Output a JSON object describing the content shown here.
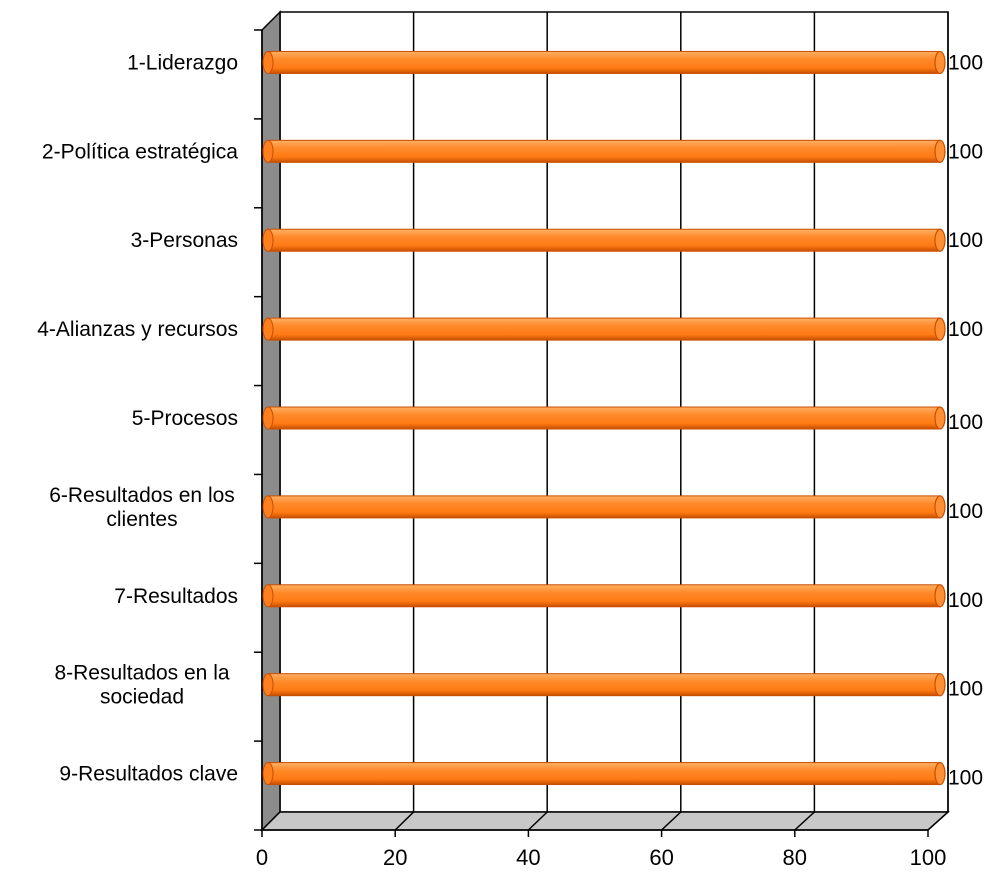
{
  "chart_data": {
    "type": "bar",
    "orientation": "horizontal",
    "style": "3d-cylinder",
    "categories": [
      [
        "1-Liderazgo"
      ],
      [
        "2-Política estratégica"
      ],
      [
        "3-Personas"
      ],
      [
        "4-Alianzas y recursos"
      ],
      [
        "5-Procesos"
      ],
      [
        "6-Resultados en los",
        "clientes"
      ],
      [
        "7-Resultados"
      ],
      [
        "8-Resultados en la",
        "sociedad"
      ],
      [
        "9-Resultados clave"
      ]
    ],
    "values": [
      100,
      100,
      100,
      100,
      100,
      100,
      100,
      100,
      100
    ],
    "data_labels": [
      "100",
      "100",
      "100",
      "100",
      "100",
      "100",
      "100",
      "100",
      "100"
    ],
    "xlim": [
      0,
      100
    ],
    "xticks": [
      "0",
      "20",
      "40",
      "60",
      "80",
      "100"
    ],
    "grid": true,
    "legend": "none",
    "colors": {
      "bar": "#ff7f1f",
      "bar_dark": "#c84f00",
      "bar_light": "#ffb066",
      "wall": "#ffffff",
      "side_wall": "#8c8c8c",
      "floor": "#c8c8c8",
      "gridline": "#000000"
    }
  }
}
